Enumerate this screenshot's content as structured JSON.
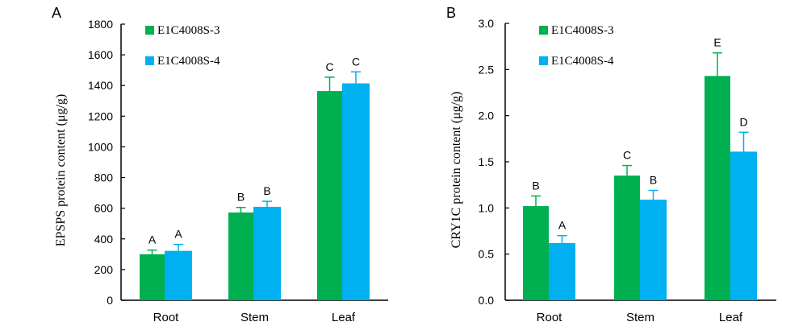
{
  "chart_data": [
    {
      "type": "bar",
      "panel": "A",
      "title": "",
      "xlabel": "",
      "ylabel": "EPSPS protein content (μg/g)",
      "ylim": [
        0,
        1800
      ],
      "yticks": [
        0,
        200,
        400,
        600,
        800,
        1000,
        1200,
        1400,
        1600,
        1800
      ],
      "ytick_labels": [
        "0",
        "200",
        "400",
        "600",
        "800",
        "1000",
        "1200",
        "1400",
        "1600",
        "1800"
      ],
      "grid": false,
      "legend_position": "top-left",
      "categories": [
        "Root",
        "Stem",
        "Leaf"
      ],
      "series": [
        {
          "name": "E1C4008S-3",
          "color": "#00b050",
          "values": [
            300,
            572,
            1364
          ],
          "errors": [
            27,
            33,
            90
          ],
          "sig_labels": [
            "A",
            "B",
            "C"
          ]
        },
        {
          "name": "E1C4008S-4",
          "color": "#00b0f0",
          "values": [
            322,
            609,
            1414
          ],
          "errors": [
            42,
            36,
            75
          ],
          "sig_labels": [
            "A",
            "B",
            "C"
          ]
        }
      ]
    },
    {
      "type": "bar",
      "panel": "B",
      "title": "",
      "xlabel": "",
      "ylabel": "CRY1C protein content (μg/g)",
      "ylim": [
        0,
        3.0
      ],
      "yticks": [
        0,
        0.5,
        1.0,
        1.5,
        2.0,
        2.5,
        3.0
      ],
      "ytick_labels": [
        "0.0",
        "0.5",
        "1.0",
        "1.5",
        "2.0",
        "2.5",
        "3.0"
      ],
      "grid": false,
      "legend_position": "top-left",
      "categories": [
        "Root",
        "Stem",
        "Leaf"
      ],
      "series": [
        {
          "name": "E1C4008S-3",
          "color": "#00b050",
          "values": [
            1.02,
            1.35,
            2.43
          ],
          "errors": [
            0.11,
            0.11,
            0.25
          ],
          "sig_labels": [
            "B",
            "C",
            "E"
          ]
        },
        {
          "name": "E1C4008S-4",
          "color": "#00b0f0",
          "values": [
            0.62,
            1.09,
            1.61
          ],
          "errors": [
            0.08,
            0.1,
            0.21
          ],
          "sig_labels": [
            "A",
            "B",
            "D"
          ]
        }
      ]
    }
  ]
}
